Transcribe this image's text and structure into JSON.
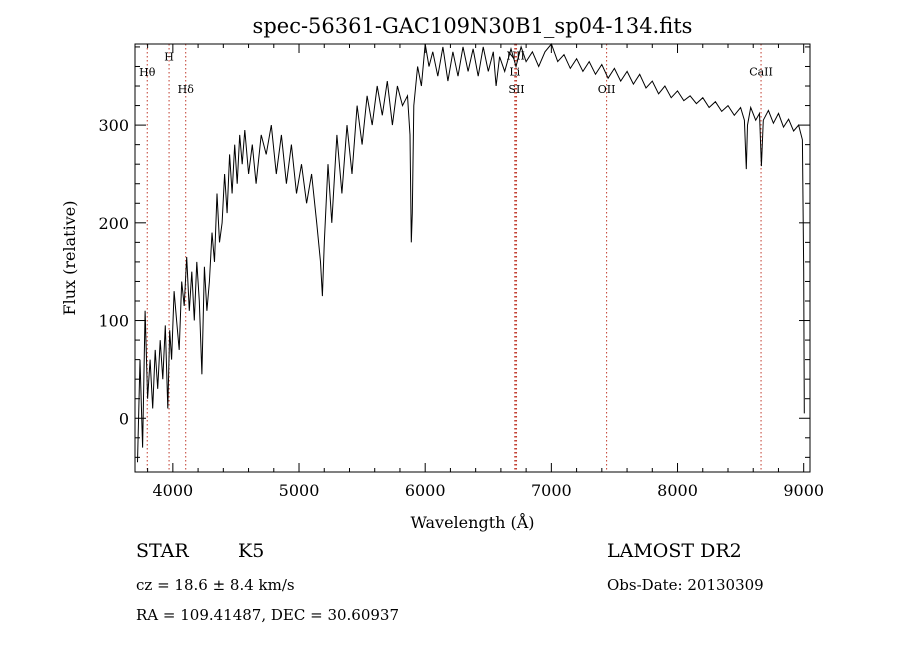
{
  "chart_data": {
    "type": "line",
    "title": "spec-56361-GAC109N30B1_sp04-134.fits",
    "xlabel": "Wavelength (Å)",
    "ylabel": "Flux (relative)",
    "xlim": [
      3700,
      9050
    ],
    "ylim": [
      -55,
      383
    ],
    "x_ticks": [
      4000,
      5000,
      6000,
      7000,
      8000,
      9000
    ],
    "y_ticks": [
      0,
      100,
      200,
      300
    ],
    "grid": false,
    "legend": "none",
    "spectral_lines": [
      {
        "label": "Hθ",
        "wavelength": 3797,
        "label_flux": 350
      },
      {
        "label": "H",
        "wavelength": 3970,
        "label_flux": 366
      },
      {
        "label": "Hδ",
        "wavelength": 4102,
        "label_flux": 333
      },
      {
        "label": "NII",
        "wavelength": 6717,
        "label_flux": 367
      },
      {
        "label": "Li",
        "wavelength": 6710,
        "label_flux": 351
      },
      {
        "label": "SII",
        "wavelength": 6724,
        "label_flux": 333
      },
      {
        "label": "OII",
        "wavelength": 7438,
        "label_flux": 333
      },
      {
        "label": "CaII",
        "wavelength": 8662,
        "label_flux": 351
      }
    ],
    "series": [
      {
        "name": "flux",
        "points": [
          [
            3720,
            -45
          ],
          [
            3740,
            60
          ],
          [
            3760,
            -30
          ],
          [
            3780,
            110
          ],
          [
            3800,
            20
          ],
          [
            3820,
            60
          ],
          [
            3840,
            10
          ],
          [
            3860,
            70
          ],
          [
            3880,
            30
          ],
          [
            3900,
            80
          ],
          [
            3920,
            40
          ],
          [
            3940,
            95
          ],
          [
            3960,
            10
          ],
          [
            3975,
            90
          ],
          [
            3990,
            60
          ],
          [
            4010,
            130
          ],
          [
            4030,
            100
          ],
          [
            4050,
            70
          ],
          [
            4070,
            140
          ],
          [
            4090,
            115
          ],
          [
            4110,
            165
          ],
          [
            4130,
            110
          ],
          [
            4150,
            150
          ],
          [
            4170,
            100
          ],
          [
            4190,
            160
          ],
          [
            4210,
            120
          ],
          [
            4230,
            45
          ],
          [
            4250,
            155
          ],
          [
            4270,
            110
          ],
          [
            4290,
            140
          ],
          [
            4310,
            190
          ],
          [
            4330,
            160
          ],
          [
            4350,
            230
          ],
          [
            4370,
            180
          ],
          [
            4390,
            200
          ],
          [
            4410,
            250
          ],
          [
            4430,
            210
          ],
          [
            4450,
            270
          ],
          [
            4470,
            230
          ],
          [
            4490,
            280
          ],
          [
            4510,
            240
          ],
          [
            4530,
            290
          ],
          [
            4550,
            260
          ],
          [
            4570,
            295
          ],
          [
            4600,
            250
          ],
          [
            4630,
            280
          ],
          [
            4660,
            240
          ],
          [
            4700,
            290
          ],
          [
            4740,
            270
          ],
          [
            4780,
            300
          ],
          [
            4820,
            250
          ],
          [
            4860,
            290
          ],
          [
            4900,
            240
          ],
          [
            4940,
            280
          ],
          [
            4980,
            230
          ],
          [
            5020,
            260
          ],
          [
            5060,
            220
          ],
          [
            5100,
            250
          ],
          [
            5140,
            200
          ],
          [
            5170,
            160
          ],
          [
            5185,
            125
          ],
          [
            5200,
            180
          ],
          [
            5230,
            260
          ],
          [
            5260,
            200
          ],
          [
            5300,
            290
          ],
          [
            5340,
            230
          ],
          [
            5380,
            300
          ],
          [
            5420,
            250
          ],
          [
            5460,
            320
          ],
          [
            5500,
            280
          ],
          [
            5540,
            330
          ],
          [
            5580,
            300
          ],
          [
            5620,
            340
          ],
          [
            5660,
            310
          ],
          [
            5700,
            345
          ],
          [
            5740,
            300
          ],
          [
            5780,
            340
          ],
          [
            5820,
            320
          ],
          [
            5860,
            330
          ],
          [
            5880,
            290
          ],
          [
            5890,
            180
          ],
          [
            5898,
            210
          ],
          [
            5910,
            320
          ],
          [
            5940,
            360
          ],
          [
            5970,
            340
          ],
          [
            6000,
            383
          ],
          [
            6030,
            360
          ],
          [
            6060,
            375
          ],
          [
            6100,
            350
          ],
          [
            6140,
            380
          ],
          [
            6180,
            345
          ],
          [
            6220,
            375
          ],
          [
            6260,
            350
          ],
          [
            6300,
            380
          ],
          [
            6340,
            355
          ],
          [
            6380,
            378
          ],
          [
            6420,
            350
          ],
          [
            6460,
            380
          ],
          [
            6500,
            355
          ],
          [
            6540,
            375
          ],
          [
            6562,
            340
          ],
          [
            6590,
            370
          ],
          [
            6630,
            355
          ],
          [
            6680,
            378
          ],
          [
            6720,
            360
          ],
          [
            6760,
            380
          ],
          [
            6800,
            365
          ],
          [
            6850,
            375
          ],
          [
            6900,
            360
          ],
          [
            6950,
            375
          ],
          [
            7000,
            385
          ],
          [
            7050,
            365
          ],
          [
            7100,
            372
          ],
          [
            7150,
            358
          ],
          [
            7200,
            368
          ],
          [
            7250,
            355
          ],
          [
            7300,
            365
          ],
          [
            7350,
            352
          ],
          [
            7400,
            362
          ],
          [
            7450,
            348
          ],
          [
            7500,
            358
          ],
          [
            7550,
            345
          ],
          [
            7600,
            355
          ],
          [
            7650,
            342
          ],
          [
            7700,
            352
          ],
          [
            7750,
            338
          ],
          [
            7800,
            345
          ],
          [
            7850,
            332
          ],
          [
            7900,
            340
          ],
          [
            7950,
            328
          ],
          [
            8000,
            335
          ],
          [
            8050,
            325
          ],
          [
            8100,
            330
          ],
          [
            8150,
            322
          ],
          [
            8200,
            328
          ],
          [
            8250,
            318
          ],
          [
            8300,
            324
          ],
          [
            8350,
            314
          ],
          [
            8400,
            320
          ],
          [
            8450,
            310
          ],
          [
            8500,
            318
          ],
          [
            8530,
            305
          ],
          [
            8545,
            255
          ],
          [
            8555,
            300
          ],
          [
            8580,
            318
          ],
          [
            8620,
            305
          ],
          [
            8650,
            312
          ],
          [
            8665,
            258
          ],
          [
            8680,
            305
          ],
          [
            8720,
            315
          ],
          [
            8760,
            302
          ],
          [
            8800,
            312
          ],
          [
            8840,
            298
          ],
          [
            8880,
            306
          ],
          [
            8920,
            294
          ],
          [
            8960,
            300
          ],
          [
            8990,
            285
          ],
          [
            9000,
            150
          ],
          [
            9005,
            5
          ]
        ]
      }
    ]
  },
  "info": {
    "class_label": "STAR",
    "subclass": "K5",
    "survey": "LAMOST DR2",
    "cz": "cz = 18.6 ± 8.4 km/s",
    "obs_date": "Obs-Date: 20130309",
    "coords": "RA = 109.41487, DEC =  30.60937"
  }
}
